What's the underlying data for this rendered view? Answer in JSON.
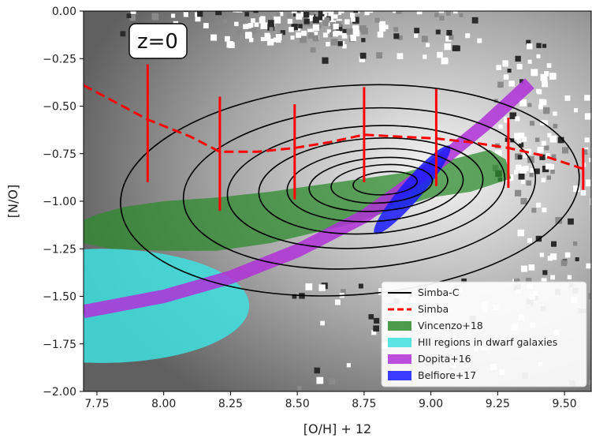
{
  "chart_data": {
    "type": "line",
    "xlabel": "[O/H] + 12",
    "ylabel": "[N/O]",
    "xlim": [
      7.7,
      9.6
    ],
    "ylim": [
      -2.0,
      0.0
    ],
    "xticks": [
      7.75,
      8.0,
      8.25,
      8.5,
      8.75,
      9.0,
      9.25,
      9.5
    ],
    "xtick_labels": [
      "7.75",
      "8.00",
      "8.25",
      "8.50",
      "8.75",
      "9.00",
      "9.25",
      "9.50"
    ],
    "yticks": [
      0.0,
      -0.25,
      -0.5,
      -0.75,
      -1.0,
      -1.25,
      -1.5,
      -1.75,
      -2.0
    ],
    "ytick_labels": [
      "0.00",
      "−0.25",
      "−0.50",
      "−0.75",
      "−1.00",
      "−1.25",
      "−1.50",
      "−1.75",
      "−2.00"
    ],
    "annotation": "z=0",
    "legend_position": "lower-right",
    "legend": [
      {
        "label": "Simba-C",
        "kind": "line",
        "color": "#000000"
      },
      {
        "label": "Simba",
        "kind": "dashed",
        "color": "#ff0000"
      },
      {
        "label": "Vincenzo+18",
        "kind": "patch",
        "color": "#2e8b2e"
      },
      {
        "label": "HII regions in dwarf galaxies",
        "kind": "patch",
        "color": "#40e0e0"
      },
      {
        "label": "Dopita+16",
        "kind": "patch",
        "color": "#b030d8"
      },
      {
        "label": "Belfiore+17",
        "kind": "patch",
        "color": "#1a1aff"
      }
    ],
    "series": [
      {
        "name": "Simba",
        "style": "dashed",
        "color": "#ff0000",
        "x": [
          7.7,
          7.94,
          8.1,
          8.21,
          8.35,
          8.49,
          8.62,
          8.75,
          8.88,
          9.02,
          9.15,
          9.29,
          9.42,
          9.57
        ],
        "y": [
          -0.39,
          -0.57,
          -0.66,
          -0.74,
          -0.74,
          -0.72,
          -0.69,
          -0.65,
          -0.66,
          -0.67,
          -0.69,
          -0.72,
          -0.76,
          -0.83
        ],
        "error_x": [
          7.94,
          8.21,
          8.49,
          8.75,
          9.02,
          9.29,
          9.57
        ],
        "error_low": [
          -0.9,
          -1.05,
          -0.99,
          -0.9,
          -0.92,
          -0.93,
          -0.94
        ],
        "error_high": [
          -0.28,
          -0.45,
          -0.49,
          -0.4,
          -0.41,
          -0.56,
          -0.72
        ]
      },
      {
        "name": "Dopita+16",
        "style": "band",
        "color": "#b030d8",
        "x": [
          7.7,
          8.0,
          8.25,
          8.5,
          8.75,
          9.0,
          9.2,
          9.37
        ],
        "y": [
          -1.58,
          -1.5,
          -1.4,
          -1.26,
          -1.08,
          -0.83,
          -0.6,
          -0.38
        ]
      }
    ],
    "regions": [
      {
        "name": "Simba-C",
        "kind": "contours",
        "color": "#000000",
        "center": [
          8.85,
          -0.9
        ],
        "radii_x": [
          0.12,
          0.19,
          0.26,
          0.33,
          0.42,
          0.52,
          0.66,
          0.86
        ],
        "radii_y": [
          0.06,
          0.1,
          0.14,
          0.19,
          0.25,
          0.32,
          0.42,
          0.55
        ]
      },
      {
        "name": "Vincenzo+18",
        "kind": "polygon",
        "color": "#2e8b2e",
        "x": [
          7.7,
          7.7,
          7.8,
          8.0,
          8.2,
          8.4,
          8.55,
          8.7,
          8.85,
          9.0,
          9.15,
          9.3,
          9.28,
          9.22,
          9.05,
          8.9,
          8.75,
          8.6,
          8.4,
          8.2,
          8.0,
          7.85,
          7.75
        ],
        "y": [
          -1.1,
          -1.22,
          -1.25,
          -1.26,
          -1.26,
          -1.22,
          -1.17,
          -1.12,
          -1.05,
          -0.98,
          -0.95,
          -0.88,
          -0.78,
          -0.73,
          -0.79,
          -0.85,
          -0.88,
          -0.91,
          -0.95,
          -0.98,
          -1.0,
          -1.03,
          -1.07
        ]
      },
      {
        "name": "HII regions in dwarf galaxies",
        "kind": "ellipse",
        "color": "#40e0e0",
        "center": [
          7.77,
          -1.55
        ],
        "radius_x": 0.55,
        "radius_y": 0.3
      },
      {
        "name": "Belfiore+17",
        "kind": "rotated-ellipse",
        "color": "#1a1aff",
        "center": [
          8.93,
          -0.94
        ],
        "half_length_x": 0.14,
        "half_length_y": 0.23,
        "half_width": 0.055
      }
    ]
  }
}
